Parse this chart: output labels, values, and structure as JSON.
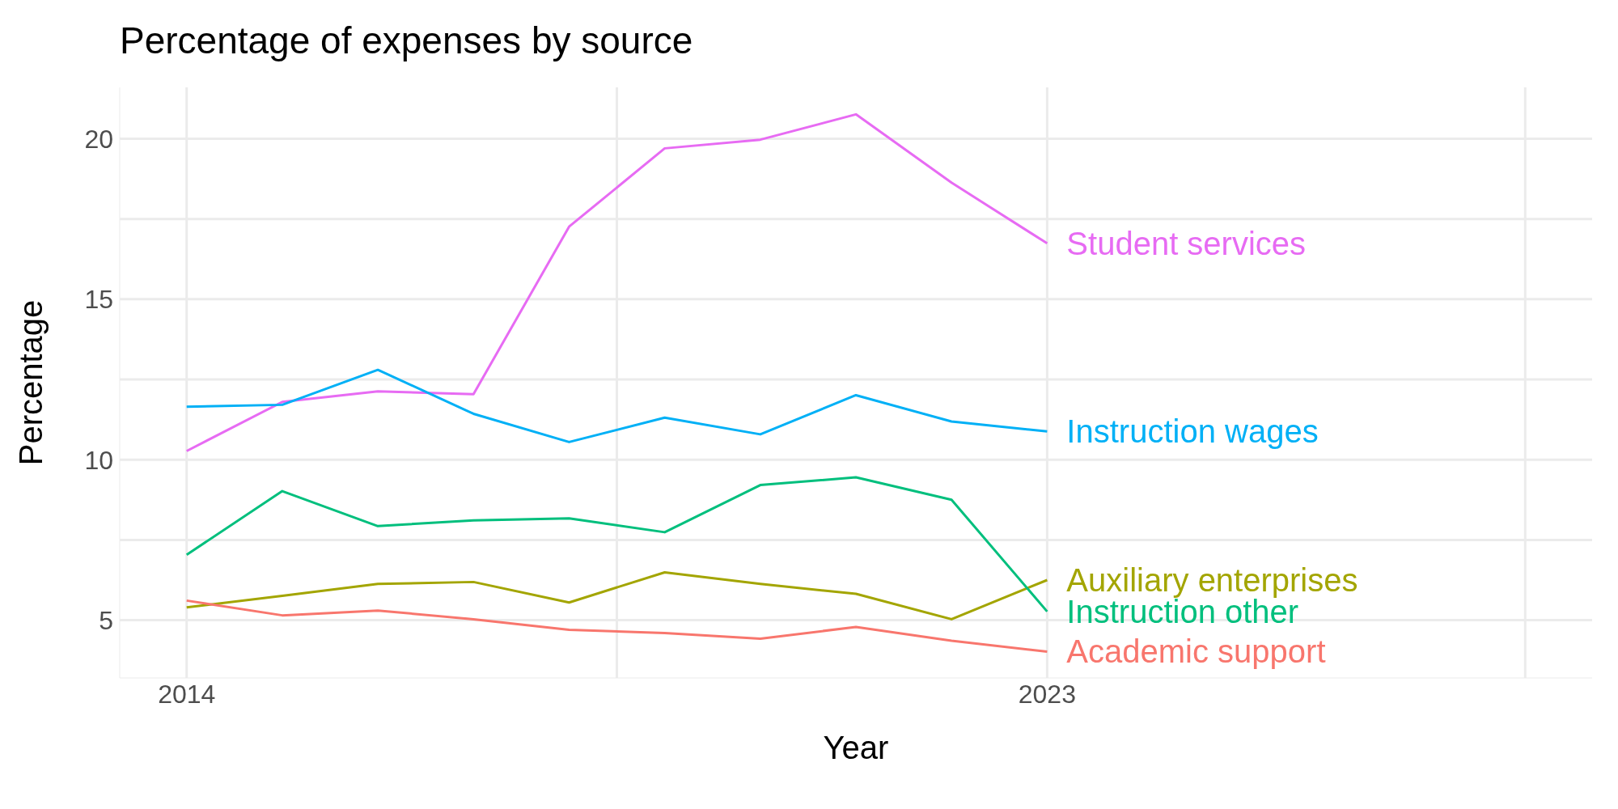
{
  "chart_data": {
    "type": "line",
    "title": "Percentage of expenses by source",
    "xlabel": "Year",
    "ylabel": "Percentage",
    "x": [
      2014,
      2015,
      2016,
      2017,
      2018,
      2019,
      2020,
      2021,
      2022,
      2023
    ],
    "xlim": [
      2013.3,
      2028.7
    ],
    "xticks": [
      2014,
      {
        "value": 2018.5,
        "label": null
      },
      2023,
      {
        "value": 2028,
        "label": null
      }
    ],
    "ylim": [
      3.2,
      21.6
    ],
    "yticks": [
      5,
      {
        "value": 7.5,
        "label": null
      },
      10,
      {
        "value": 12.5,
        "label": null
      },
      15,
      {
        "value": 17.5,
        "label": null
      },
      20
    ],
    "grid": true,
    "legend": false,
    "marker": "none",
    "line_style": "solid",
    "series": [
      {
        "name": "Student services",
        "color": "#e76bf3",
        "values": [
          10.27,
          11.8,
          12.13,
          12.04,
          17.26,
          19.7,
          19.97,
          20.76,
          18.63,
          16.74
        ]
      },
      {
        "name": "Instruction wages",
        "color": "#00b0f6",
        "values": [
          11.65,
          11.71,
          12.8,
          11.43,
          10.55,
          11.31,
          10.79,
          12.01,
          11.19,
          10.88
        ]
      },
      {
        "name": "Auxiliary enterprises",
        "color": "#a3a500",
        "values": [
          5.4,
          5.76,
          6.13,
          6.19,
          5.55,
          6.49,
          6.13,
          5.82,
          5.03,
          6.25
        ]
      },
      {
        "name": "Instruction other",
        "color": "#00bf7d",
        "values": [
          7.04,
          9.02,
          7.93,
          8.11,
          8.17,
          7.74,
          9.21,
          9.45,
          8.75,
          5.27
        ]
      },
      {
        "name": "Academic support",
        "color": "#f8766d",
        "values": [
          5.61,
          5.15,
          5.3,
          5.03,
          4.7,
          4.6,
          4.42,
          4.79,
          4.36,
          4.02
        ]
      }
    ]
  }
}
